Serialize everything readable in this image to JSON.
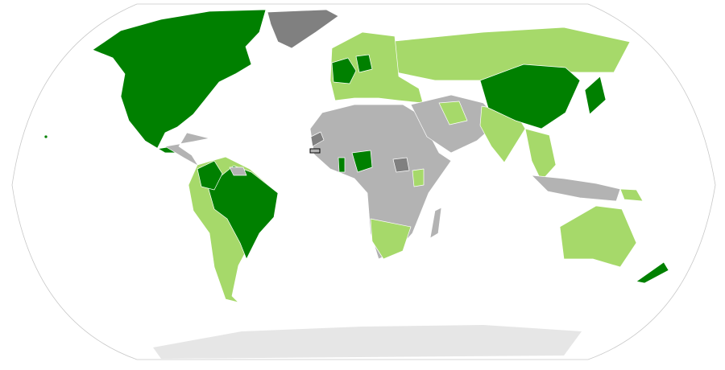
{
  "map": {
    "projection": "robinson",
    "colors": {
      "category_dark_green": "#008000",
      "category_light_green": "#a6d96a",
      "category_gray": "#b3b3b3",
      "category_dark_gray": "#808080",
      "antarctica": "#e6e6e6",
      "ocean": "#ffffff",
      "outline": "#c8c8c8"
    }
  }
}
